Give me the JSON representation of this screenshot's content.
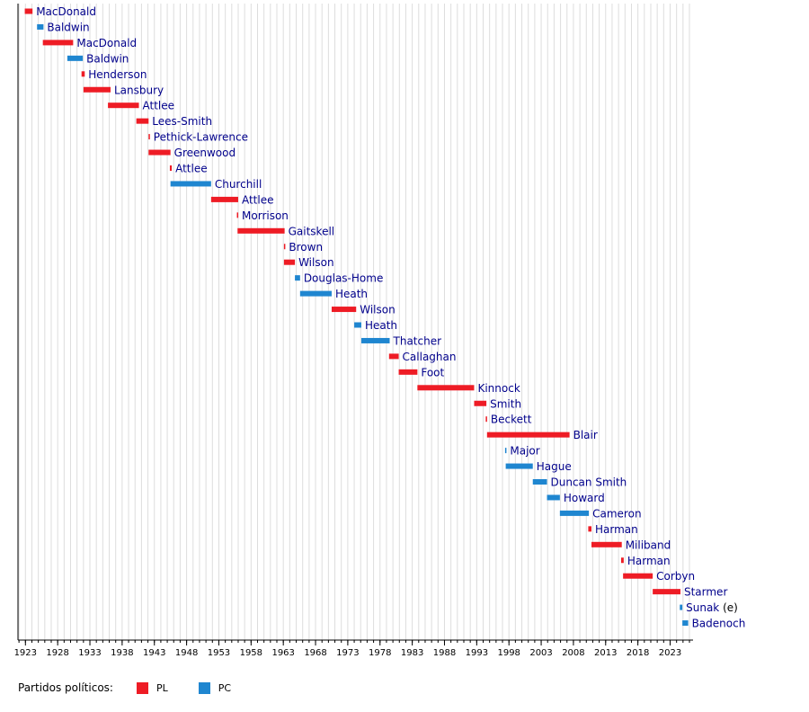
{
  "chart_data": {
    "type": "timeline",
    "xlim": [
      1921,
      2026.5
    ],
    "tick_labels": [
      "1923",
      "1928",
      "1933",
      "1938",
      "1943",
      "1948",
      "1953",
      "1958",
      "1963",
      "1968",
      "1973",
      "1978",
      "1983",
      "1988",
      "1993",
      "1998",
      "2003",
      "2008",
      "2013",
      "2018",
      "2023"
    ],
    "legend": {
      "title": "Partidos políticos:",
      "entries": [
        {
          "key": "PL",
          "label": "PL",
          "color": "#ee1c25"
        },
        {
          "key": "PC",
          "label": "PC",
          "color": "#1f86d0"
        }
      ]
    },
    "bars": [
      {
        "name": "MacDonald",
        "party": "PL",
        "start": 1922.9,
        "end": 1924.1
      },
      {
        "name": "Baldwin",
        "party": "PC",
        "start": 1924.8,
        "end": 1925.8
      },
      {
        "name": "MacDonald",
        "party": "PL",
        "start": 1925.7,
        "end": 1930.4
      },
      {
        "name": "Baldwin",
        "party": "PC",
        "start": 1929.5,
        "end": 1931.9
      },
      {
        "name": "Henderson",
        "party": "PL",
        "start": 1931.7,
        "end": 1932.2
      },
      {
        "name": "Lansbury",
        "party": "PL",
        "start": 1932.0,
        "end": 1936.2
      },
      {
        "name": "Attlee",
        "party": "PL",
        "start": 1935.8,
        "end": 1940.6
      },
      {
        "name": "Lees-Smith",
        "party": "PL",
        "start": 1940.2,
        "end": 1942.1
      },
      {
        "name": "Pethick-Lawrence",
        "party": "PL",
        "start": 1942.1,
        "end": 1942.3
      },
      {
        "name": "Greenwood",
        "party": "PL",
        "start": 1942.1,
        "end": 1945.5
      },
      {
        "name": "Attlee",
        "party": "PL",
        "start": 1945.4,
        "end": 1945.7
      },
      {
        "name": "Churchill",
        "party": "PC",
        "start": 1945.5,
        "end": 1951.8
      },
      {
        "name": "Attlee",
        "party": "PL",
        "start": 1951.8,
        "end": 1956.0
      },
      {
        "name": "Morrison",
        "party": "PL",
        "start": 1955.8,
        "end": 1956.0
      },
      {
        "name": "Gaitskell",
        "party": "PL",
        "start": 1955.9,
        "end": 1963.2
      },
      {
        "name": "Brown",
        "party": "PL",
        "start": 1963.1,
        "end": 1963.3
      },
      {
        "name": "Wilson",
        "party": "PL",
        "start": 1963.1,
        "end": 1964.8
      },
      {
        "name": "Douglas-Home",
        "party": "PC",
        "start": 1964.8,
        "end": 1965.6
      },
      {
        "name": "Heath",
        "party": "PC",
        "start": 1965.6,
        "end": 1970.5
      },
      {
        "name": "Wilson",
        "party": "PL",
        "start": 1970.5,
        "end": 1974.3
      },
      {
        "name": "Heath",
        "party": "PC",
        "start": 1974.0,
        "end": 1975.1
      },
      {
        "name": "Thatcher",
        "party": "PC",
        "start": 1975.1,
        "end": 1979.5
      },
      {
        "name": "Callaghan",
        "party": "PL",
        "start": 1979.4,
        "end": 1980.9
      },
      {
        "name": "Foot",
        "party": "PL",
        "start": 1980.9,
        "end": 1983.8
      },
      {
        "name": "Kinnock",
        "party": "PL",
        "start": 1983.8,
        "end": 1992.6
      },
      {
        "name": "Smith",
        "party": "PL",
        "start": 1992.6,
        "end": 1994.5
      },
      {
        "name": "Beckett",
        "party": "PL",
        "start": 1994.4,
        "end": 1994.6
      },
      {
        "name": "Blair",
        "party": "PL",
        "start": 1994.6,
        "end": 2007.4
      },
      {
        "name": "Major",
        "party": "PC",
        "start": 1997.4,
        "end": 1997.6
      },
      {
        "name": "Hague",
        "party": "PC",
        "start": 1997.5,
        "end": 2001.7
      },
      {
        "name": "Duncan Smith",
        "party": "PC",
        "start": 2001.7,
        "end": 2003.9
      },
      {
        "name": "Howard",
        "party": "PC",
        "start": 2003.9,
        "end": 2005.9
      },
      {
        "name": "Cameron",
        "party": "PC",
        "start": 2005.9,
        "end": 2010.4
      },
      {
        "name": "Harman",
        "party": "PL",
        "start": 2010.3,
        "end": 2010.8
      },
      {
        "name": "Miliband",
        "party": "PL",
        "start": 2010.8,
        "end": 2015.5
      },
      {
        "name": "Harman",
        "party": "PL",
        "start": 2015.4,
        "end": 2015.8
      },
      {
        "name": "Corbyn",
        "party": "PL",
        "start": 2015.7,
        "end": 2020.3
      },
      {
        "name": "Starmer",
        "party": "PL",
        "start": 2020.3,
        "end": 2024.6
      },
      {
        "name": "Sunak",
        "note": "(e)",
        "party": "PC",
        "start": 2024.5,
        "end": 2024.9
      },
      {
        "name": "Badenoch",
        "party": "PC",
        "start": 2024.9,
        "end": 2025.8
      }
    ]
  }
}
